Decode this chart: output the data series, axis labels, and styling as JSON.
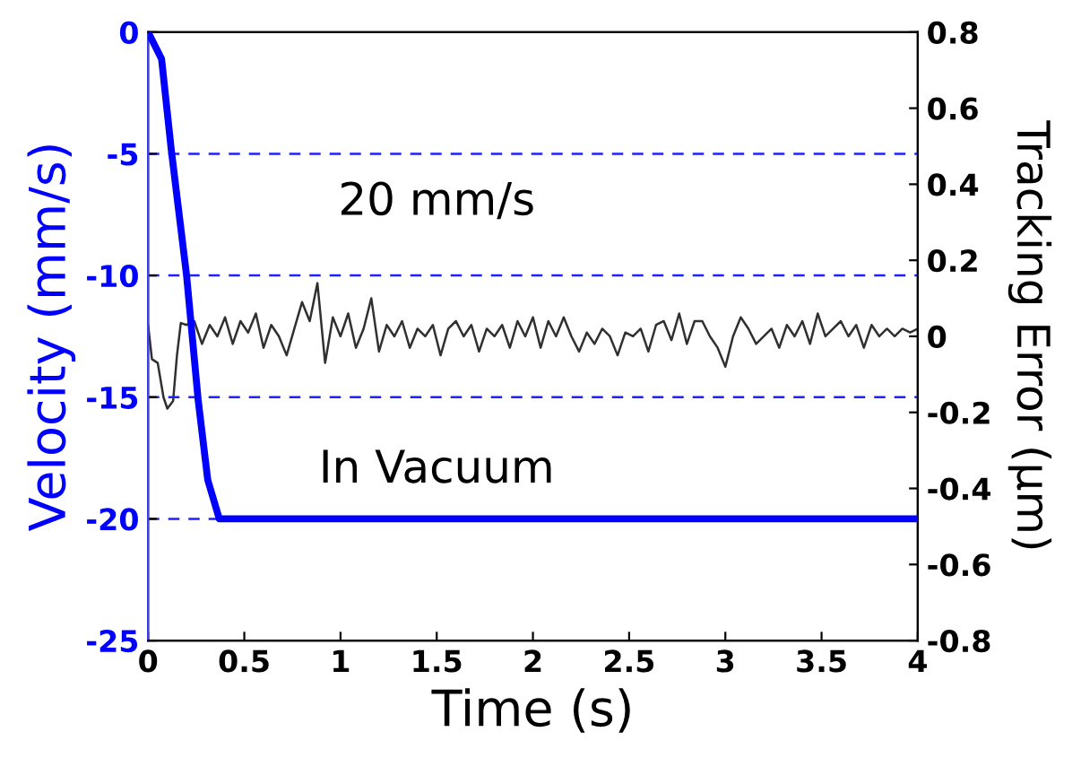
{
  "chart_data": {
    "type": "line",
    "xlabel": "Time (s)",
    "ylabel": "Velocity (mm/s)",
    "y2label": "Tracking Error (μm)",
    "annotations": [
      "20 mm/s",
      "In Vacuum"
    ],
    "xlim": [
      0,
      4
    ],
    "xticks": [
      0,
      0.5,
      1,
      1.5,
      2,
      2.5,
      3,
      3.5,
      4
    ],
    "ylim": [
      -25,
      0
    ],
    "yticks": [
      0,
      -5,
      -10,
      -15,
      -20,
      -25
    ],
    "y2lim": [
      -0.8,
      0.8
    ],
    "y2ticks": [
      0.8,
      0.6,
      0.4,
      0.2,
      0,
      -0.2,
      -0.4,
      -0.6,
      -0.8
    ],
    "ref_lines": [
      {
        "axis": "y",
        "value": -5,
        "color": "#2020ff",
        "line_style": "dashed"
      },
      {
        "axis": "y",
        "value": -10,
        "color": "#2020ff",
        "line_style": "dashed"
      },
      {
        "axis": "y",
        "value": -15,
        "color": "#2020ff",
        "line_style": "dashed"
      },
      {
        "axis": "y",
        "value": -20,
        "color": "#2020ff",
        "line_style": "dashed"
      }
    ],
    "series": [
      {
        "color": "#0000ff",
        "x": [
          0,
          0.07,
          0.12,
          0.2,
          0.26,
          0.31,
          0.37,
          4
        ],
        "values": [
          0,
          -1.1,
          -4.8,
          -10,
          -15.1,
          -18.4,
          -20,
          -20
        ]
      },
      {
        "color": "#303030",
        "axis": "y2",
        "x": [
          0,
          0.02,
          0.05,
          0.08,
          0.1,
          0.13,
          0.15,
          0.17,
          0.2,
          0.24,
          0.28,
          0.32,
          0.36,
          0.4,
          0.44,
          0.48,
          0.52,
          0.56,
          0.6,
          0.64,
          0.68,
          0.72,
          0.76,
          0.8,
          0.84,
          0.88,
          0.92,
          0.96,
          1.0,
          1.04,
          1.08,
          1.12,
          1.16,
          1.2,
          1.24,
          1.28,
          1.32,
          1.36,
          1.4,
          1.44,
          1.48,
          1.52,
          1.56,
          1.6,
          1.64,
          1.68,
          1.72,
          1.76,
          1.8,
          1.84,
          1.88,
          1.92,
          1.96,
          2.0,
          2.04,
          2.08,
          2.12,
          2.16,
          2.2,
          2.24,
          2.28,
          2.32,
          2.36,
          2.4,
          2.44,
          2.48,
          2.52,
          2.56,
          2.6,
          2.64,
          2.68,
          2.72,
          2.76,
          2.8,
          2.84,
          2.88,
          2.92,
          2.96,
          3.0,
          3.04,
          3.08,
          3.12,
          3.16,
          3.2,
          3.24,
          3.28,
          3.32,
          3.36,
          3.4,
          3.44,
          3.48,
          3.52,
          3.56,
          3.6,
          3.64,
          3.68,
          3.72,
          3.76,
          3.8,
          3.84,
          3.88,
          3.92,
          3.96,
          4.0
        ],
        "values": [
          0.03,
          -0.06,
          -0.07,
          -0.16,
          -0.19,
          -0.17,
          -0.05,
          0.035,
          0.03,
          0.04,
          -0.02,
          0.03,
          0.0,
          0.05,
          -0.02,
          0.04,
          0.01,
          0.06,
          -0.03,
          0.03,
          0.0,
          -0.05,
          0.02,
          0.09,
          0.04,
          0.14,
          -0.07,
          0.05,
          0.0,
          0.06,
          -0.03,
          0.02,
          0.1,
          -0.04,
          0.03,
          0.0,
          0.04,
          -0.03,
          0.02,
          0.0,
          0.03,
          -0.05,
          0.02,
          0.04,
          0.0,
          0.03,
          -0.04,
          0.02,
          0.0,
          0.03,
          -0.03,
          0.04,
          0.0,
          0.05,
          -0.03,
          0.04,
          0.0,
          0.05,
          0.0,
          -0.04,
          0.01,
          -0.02,
          0.02,
          0.0,
          -0.05,
          0.01,
          0.0,
          0.02,
          -0.04,
          0.03,
          0.04,
          -0.01,
          0.06,
          -0.02,
          0.04,
          0.04,
          0.0,
          -0.03,
          -0.08,
          0.0,
          0.05,
          0.02,
          -0.02,
          0.0,
          0.02,
          -0.03,
          0.03,
          0.0,
          0.04,
          -0.02,
          0.06,
          0.0,
          0.02,
          0.04,
          0.0,
          0.03,
          -0.03,
          0.03,
          0.0,
          0.02,
          0.0,
          0.02,
          0.01,
          0.02
        ]
      }
    ]
  }
}
